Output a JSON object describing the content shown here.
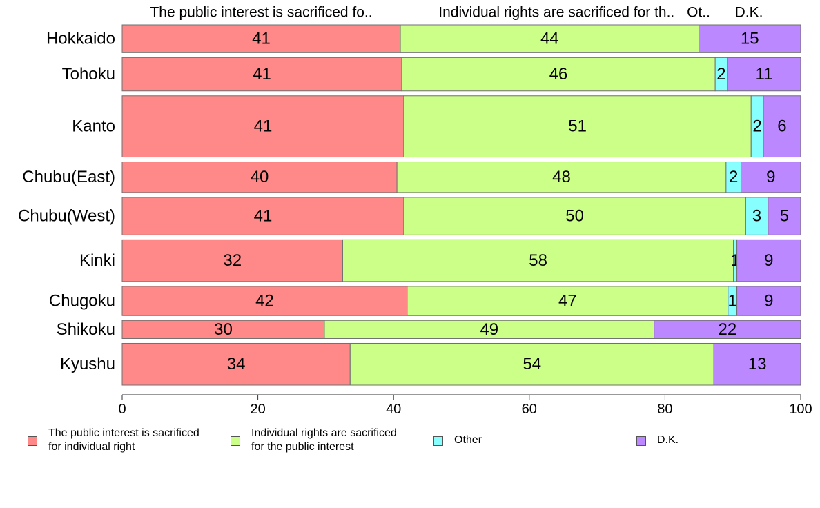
{
  "chart_data": {
    "type": "bar",
    "orientation": "horizontal",
    "stacked": true,
    "categories": [
      "Hokkaido",
      "Tohoku",
      "Kanto",
      "Chubu(East)",
      "Chubu(West)",
      "Kinki",
      "Chugoku",
      "Shikoku",
      "Kyushu"
    ],
    "series": [
      {
        "name": "The public interest is sacrificed for individual right",
        "color": "#ff8888",
        "values": [
          41,
          41.2,
          41.5,
          40.5,
          41.5,
          32.5,
          42,
          29.8,
          33.6
        ],
        "labels": [
          "41",
          "41",
          "41",
          "40",
          "41",
          "32",
          "42",
          "30",
          "34"
        ]
      },
      {
        "name": "Individual rights are sacrificed for the public interest",
        "color": "#ccff88",
        "values": [
          44,
          46.2,
          51.2,
          48.5,
          50.4,
          57.6,
          47.3,
          48.6,
          53.6
        ],
        "labels": [
          "44",
          "46",
          "51",
          "48",
          "50",
          "58",
          "47",
          "49",
          "54"
        ]
      },
      {
        "name": "Other",
        "color": "#88ffff",
        "values": [
          0,
          1.8,
          1.8,
          2.2,
          3.3,
          0.5,
          1.3,
          0,
          0
        ],
        "labels": [
          "",
          "2",
          "2",
          "2",
          "3",
          "1",
          "1",
          "",
          ""
        ]
      },
      {
        "name": "D.K.",
        "color": "#bb88ff",
        "values": [
          15,
          10.8,
          5.5,
          8.8,
          4.8,
          9.4,
          9.4,
          21.6,
          12.8
        ],
        "labels": [
          "15",
          "11",
          "6",
          "9",
          "5",
          "9",
          "9",
          "22",
          "13"
        ]
      }
    ],
    "bar_weights": [
      1.0,
      1.2,
      2.2,
      1.1,
      1.35,
      1.5,
      1.05,
      0.65,
      1.5
    ],
    "header_labels": [
      "The public interest is sacrificed fo..",
      "Individual rights are sacrificed for th..",
      "Ot..",
      "D.K."
    ],
    "xlim": [
      0,
      100
    ],
    "xticks": [
      "0",
      "20",
      "40",
      "60",
      "80",
      "100"
    ],
    "grid": false,
    "legend": {
      "position": "bottom",
      "items": [
        {
          "label": "The public interest is sacrificed\nfor individual right",
          "color": "#ff8888"
        },
        {
          "label": "Individual rights are sacrificed\nfor the public interest",
          "color": "#ccff88"
        },
        {
          "label": "Other",
          "color": "#88ffff"
        },
        {
          "label": "D.K.",
          "color": "#bb88ff"
        }
      ]
    }
  }
}
